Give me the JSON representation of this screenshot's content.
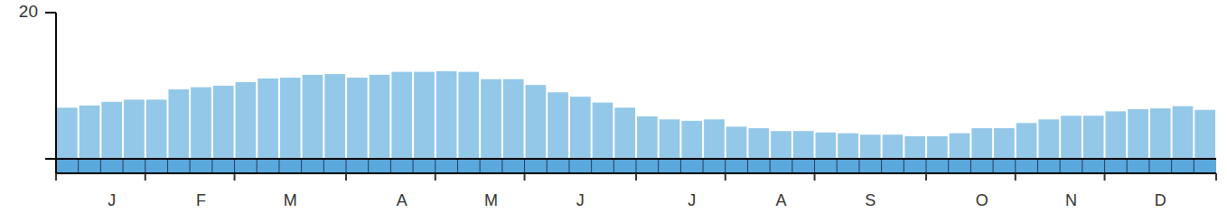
{
  "chart_data": {
    "type": "bar",
    "categories": [
      null,
      null,
      "J",
      null,
      null,
      null,
      "F",
      null,
      null,
      null,
      "M",
      null,
      null,
      null,
      null,
      "A",
      null,
      null,
      null,
      "M",
      null,
      null,
      null,
      "J",
      null,
      null,
      null,
      null,
      "J",
      null,
      null,
      null,
      "A",
      null,
      null,
      null,
      "S",
      null,
      null,
      null,
      null,
      "O",
      null,
      null,
      null,
      "N",
      null,
      null,
      null,
      "D",
      null,
      null
    ],
    "values": [
      7.0,
      7.3,
      7.8,
      8.1,
      8.1,
      9.5,
      9.8,
      10.0,
      10.5,
      11.0,
      11.1,
      11.5,
      11.6,
      11.1,
      11.5,
      11.9,
      11.9,
      12.0,
      11.9,
      10.9,
      10.9,
      10.1,
      9.1,
      8.5,
      7.7,
      7.0,
      5.8,
      5.4,
      5.2,
      5.4,
      4.4,
      4.2,
      3.8,
      3.8,
      3.6,
      3.5,
      3.3,
      3.3,
      3.1,
      3.1,
      3.5,
      4.2,
      4.2,
      4.9,
      5.4,
      5.9,
      5.9,
      6.5,
      6.8,
      6.9,
      7.2,
      6.7
    ],
    "color": "#94c8e8",
    "ylim": [
      0,
      20
    ],
    "yticks": [
      20
    ],
    "grid": false
  }
}
